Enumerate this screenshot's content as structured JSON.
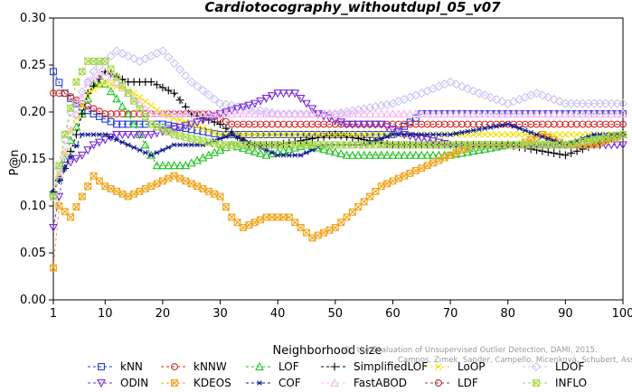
{
  "chart_data": {
    "type": "line",
    "title": "Cardiotocography_withoutdupl_05_v07",
    "xlabel": "Neighborhood size",
    "ylabel": "P@n",
    "xlim": [
      1,
      100
    ],
    "ylim": [
      0,
      0.3
    ],
    "xticks": [
      1,
      10,
      20,
      30,
      40,
      50,
      60,
      70,
      80,
      90,
      100
    ],
    "yticks": [
      "0.00",
      "0.05",
      "0.10",
      "0.15",
      "0.20",
      "0.25",
      "0.30"
    ],
    "credit": "Campos, Zimek, Sander, Campello, Micenková, Schubert, Assent, Houle On the Evaluation of Unsupervised Outlier Detection, DAMI, 2015.",
    "legend_position": "bottom",
    "series": [
      {
        "name": "kNN",
        "color": "#1f3fd6",
        "marker": "square",
        "points": [
          [
            1,
            0.243
          ],
          [
            3,
            0.22
          ],
          [
            5,
            0.209
          ],
          [
            8,
            0.198
          ],
          [
            12,
            0.187
          ],
          [
            20,
            0.187
          ],
          [
            30,
            0.176
          ],
          [
            40,
            0.176
          ],
          [
            50,
            0.176
          ],
          [
            60,
            0.176
          ],
          [
            65,
            0.198
          ],
          [
            75,
            0.198
          ],
          [
            85,
            0.198
          ],
          [
            95,
            0.198
          ],
          [
            100,
            0.198
          ]
        ]
      },
      {
        "name": "kNNW",
        "color": "#d42a2a",
        "marker": "circle",
        "points": [
          [
            1,
            0.22
          ],
          [
            3,
            0.22
          ],
          [
            6,
            0.209
          ],
          [
            10,
            0.198
          ],
          [
            15,
            0.198
          ],
          [
            20,
            0.198
          ],
          [
            28,
            0.198
          ],
          [
            32,
            0.187
          ],
          [
            40,
            0.187
          ],
          [
            50,
            0.187
          ],
          [
            60,
            0.187
          ],
          [
            70,
            0.187
          ],
          [
            80,
            0.187
          ],
          [
            90,
            0.187
          ],
          [
            100,
            0.187
          ]
        ]
      },
      {
        "name": "LOF",
        "color": "#22c322",
        "marker": "triangle-up",
        "points": [
          [
            1,
            0.115
          ],
          [
            2,
            0.13
          ],
          [
            4,
            0.17
          ],
          [
            6,
            0.198
          ],
          [
            8,
            0.23
          ],
          [
            10,
            0.23
          ],
          [
            14,
            0.198
          ],
          [
            17,
            0.165
          ],
          [
            19,
            0.143
          ],
          [
            24,
            0.143
          ],
          [
            28,
            0.154
          ],
          [
            32,
            0.165
          ],
          [
            38,
            0.154
          ],
          [
            45,
            0.165
          ],
          [
            52,
            0.154
          ],
          [
            60,
            0.154
          ],
          [
            70,
            0.154
          ],
          [
            80,
            0.165
          ],
          [
            90,
            0.165
          ],
          [
            100,
            0.176
          ]
        ]
      },
      {
        "name": "SimplifiedLOF",
        "color": "#000000",
        "marker": "plus",
        "points": [
          [
            1,
            0.115
          ],
          [
            3,
            0.14
          ],
          [
            5,
            0.176
          ],
          [
            7,
            0.22
          ],
          [
            10,
            0.243
          ],
          [
            14,
            0.232
          ],
          [
            18,
            0.232
          ],
          [
            22,
            0.22
          ],
          [
            25,
            0.198
          ],
          [
            30,
            0.187
          ],
          [
            35,
            0.165
          ],
          [
            40,
            0.165
          ],
          [
            50,
            0.176
          ],
          [
            60,
            0.165
          ],
          [
            70,
            0.165
          ],
          [
            80,
            0.165
          ],
          [
            90,
            0.154
          ],
          [
            95,
            0.165
          ],
          [
            100,
            0.176
          ]
        ]
      },
      {
        "name": "LoOP",
        "color": "#f2e100",
        "marker": "x",
        "points": [
          [
            1,
            0.11
          ],
          [
            4,
            0.18
          ],
          [
            7,
            0.22
          ],
          [
            10,
            0.232
          ],
          [
            15,
            0.22
          ],
          [
            20,
            0.198
          ],
          [
            30,
            0.176
          ],
          [
            40,
            0.176
          ],
          [
            50,
            0.176
          ],
          [
            60,
            0.176
          ],
          [
            70,
            0.176
          ],
          [
            80,
            0.176
          ],
          [
            90,
            0.176
          ],
          [
            100,
            0.176
          ]
        ]
      },
      {
        "name": "LDOF",
        "color": "#c9c3f5",
        "marker": "diamond",
        "points": [
          [
            1,
            0.11
          ],
          [
            4,
            0.2
          ],
          [
            8,
            0.243
          ],
          [
            12,
            0.265
          ],
          [
            16,
            0.254
          ],
          [
            20,
            0.265
          ],
          [
            25,
            0.232
          ],
          [
            30,
            0.209
          ],
          [
            40,
            0.198
          ],
          [
            50,
            0.198
          ],
          [
            60,
            0.209
          ],
          [
            65,
            0.22
          ],
          [
            70,
            0.232
          ],
          [
            75,
            0.22
          ],
          [
            80,
            0.209
          ],
          [
            85,
            0.22
          ],
          [
            90,
            0.209
          ],
          [
            95,
            0.209
          ],
          [
            100,
            0.209
          ]
        ]
      },
      {
        "name": "ODIN",
        "color": "#7a2bd8",
        "marker": "triangle-down",
        "points": [
          [
            1,
            0.077
          ],
          [
            3,
            0.143
          ],
          [
            6,
            0.154
          ],
          [
            8,
            0.165
          ],
          [
            12,
            0.176
          ],
          [
            18,
            0.176
          ],
          [
            25,
            0.187
          ],
          [
            30,
            0.198
          ],
          [
            36,
            0.209
          ],
          [
            40,
            0.22
          ],
          [
            43,
            0.22
          ],
          [
            47,
            0.198
          ],
          [
            52,
            0.187
          ],
          [
            58,
            0.187
          ],
          [
            62,
            0.176
          ],
          [
            70,
            0.165
          ],
          [
            80,
            0.165
          ],
          [
            90,
            0.165
          ],
          [
            100,
            0.165
          ]
        ]
      },
      {
        "name": "KDEOS",
        "color": "#f0a318",
        "marker": "crossed-square",
        "points": [
          [
            1,
            0.034
          ],
          [
            2,
            0.1
          ],
          [
            4,
            0.088
          ],
          [
            6,
            0.11
          ],
          [
            8,
            0.132
          ],
          [
            10,
            0.121
          ],
          [
            14,
            0.11
          ],
          [
            18,
            0.121
          ],
          [
            22,
            0.132
          ],
          [
            26,
            0.121
          ],
          [
            30,
            0.11
          ],
          [
            32,
            0.088
          ],
          [
            34,
            0.077
          ],
          [
            38,
            0.088
          ],
          [
            42,
            0.088
          ],
          [
            46,
            0.066
          ],
          [
            50,
            0.077
          ],
          [
            54,
            0.099
          ],
          [
            58,
            0.121
          ],
          [
            62,
            0.132
          ],
          [
            66,
            0.143
          ],
          [
            70,
            0.154
          ],
          [
            74,
            0.165
          ],
          [
            78,
            0.165
          ],
          [
            82,
            0.165
          ],
          [
            86,
            0.176
          ],
          [
            90,
            0.165
          ],
          [
            95,
            0.165
          ],
          [
            100,
            0.176
          ]
        ]
      },
      {
        "name": "COF",
        "color": "#0b1c8c",
        "marker": "asterisk",
        "points": [
          [
            1,
            0.115
          ],
          [
            3,
            0.14
          ],
          [
            6,
            0.176
          ],
          [
            10,
            0.176
          ],
          [
            14,
            0.165
          ],
          [
            18,
            0.154
          ],
          [
            22,
            0.165
          ],
          [
            27,
            0.165
          ],
          [
            32,
            0.176
          ],
          [
            36,
            0.165
          ],
          [
            40,
            0.154
          ],
          [
            44,
            0.154
          ],
          [
            48,
            0.165
          ],
          [
            55,
            0.165
          ],
          [
            60,
            0.176
          ],
          [
            70,
            0.176
          ],
          [
            80,
            0.187
          ],
          [
            85,
            0.176
          ],
          [
            90,
            0.165
          ],
          [
            95,
            0.176
          ],
          [
            100,
            0.176
          ]
        ]
      },
      {
        "name": "FastABOD",
        "color": "#f3b8f3",
        "marker": "triangle-up",
        "points": [
          [
            1,
            0.11
          ],
          [
            4,
            0.18
          ],
          [
            7,
            0.232
          ],
          [
            10,
            0.243
          ],
          [
            14,
            0.22
          ],
          [
            18,
            0.198
          ],
          [
            25,
            0.198
          ],
          [
            32,
            0.198
          ],
          [
            40,
            0.198
          ],
          [
            50,
            0.198
          ],
          [
            60,
            0.198
          ],
          [
            70,
            0.198
          ],
          [
            80,
            0.198
          ],
          [
            90,
            0.198
          ],
          [
            100,
            0.198
          ]
        ]
      },
      {
        "name": "INFLO",
        "color": "#a6d64a",
        "marker": "crossed-square",
        "points": [
          [
            1,
            0.11
          ],
          [
            3,
            0.176
          ],
          [
            5,
            0.232
          ],
          [
            7,
            0.254
          ],
          [
            10,
            0.254
          ],
          [
            14,
            0.22
          ],
          [
            18,
            0.187
          ],
          [
            22,
            0.176
          ],
          [
            30,
            0.165
          ],
          [
            40,
            0.165
          ],
          [
            50,
            0.165
          ],
          [
            60,
            0.165
          ],
          [
            70,
            0.165
          ],
          [
            80,
            0.165
          ],
          [
            90,
            0.165
          ],
          [
            100,
            0.176
          ]
        ]
      }
    ]
  }
}
